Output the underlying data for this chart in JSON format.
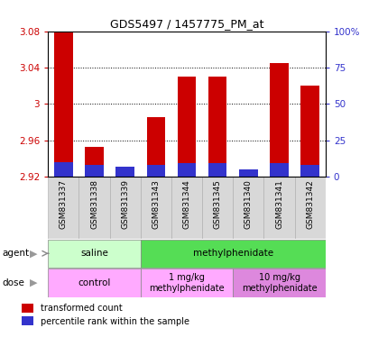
{
  "title": "GDS5497 / 1457775_PM_at",
  "samples": [
    "GSM831337",
    "GSM831338",
    "GSM831339",
    "GSM831343",
    "GSM831344",
    "GSM831345",
    "GSM831340",
    "GSM831341",
    "GSM831342"
  ],
  "red_values": [
    3.079,
    2.953,
    2.93,
    2.985,
    3.03,
    3.03,
    2.925,
    3.045,
    3.02
  ],
  "blue_percentile": [
    10,
    8,
    7,
    8,
    9,
    9,
    5,
    9,
    8
  ],
  "ymin": 2.92,
  "ymax": 3.08,
  "yticks": [
    2.92,
    2.96,
    3.0,
    3.04,
    3.08
  ],
  "ytick_labels": [
    "2.92",
    "2.96",
    "3",
    "3.04",
    "3.08"
  ],
  "right_yticks": [
    0,
    25,
    50,
    75,
    100
  ],
  "right_ytick_labels": [
    "0",
    "25",
    "50",
    "75",
    "100%"
  ],
  "bar_color_red": "#cc0000",
  "bar_color_blue": "#3333cc",
  "agent_labels": [
    "saline",
    "methylphenidate"
  ],
  "agent_color_light": "#ccffcc",
  "agent_color_bright": "#55dd55",
  "dose_labels": [
    "control",
    "1 mg/kg\nmethylphenidate",
    "10 mg/kg\nmethylphenidate"
  ],
  "dose_color1": "#ffaaff",
  "dose_color2": "#dd88dd",
  "legend_red": "transformed count",
  "legend_blue": "percentile rank within the sample",
  "red_color": "#cc0000",
  "blue_color": "#3333cc"
}
